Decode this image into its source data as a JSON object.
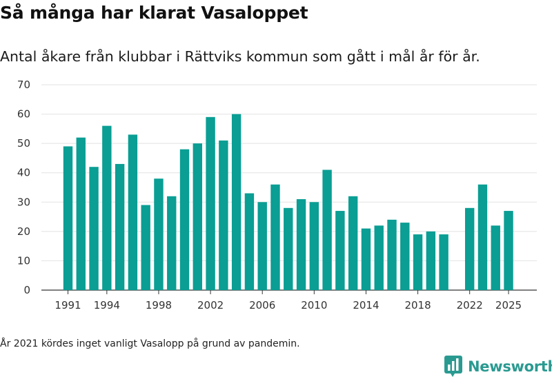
{
  "title": "Så många har klarat Vasaloppet",
  "subtitle": "Antal åkare från klubbar i Rättviks kommun som gått i mål år för år.",
  "note": "År 2021 kördes inget vanligt Vasalopp på grund av pandemin.",
  "brand": {
    "name": "Newsworthy",
    "icon": "newsworthy-logo-icon",
    "color": "#2a9a91"
  },
  "chart_data": {
    "type": "bar",
    "title": "Så många har klarat Vasaloppet",
    "xlabel": "",
    "ylabel": "",
    "bar_color": "#0a9e94",
    "ylim": [
      0,
      70
    ],
    "yticks": [
      0,
      10,
      20,
      30,
      40,
      50,
      60,
      70
    ],
    "xticks": [
      1991,
      1994,
      1998,
      2002,
      2006,
      2010,
      2014,
      2018,
      2022,
      2025
    ],
    "x": [
      1991,
      1992,
      1993,
      1994,
      1995,
      1996,
      1997,
      1998,
      1999,
      2000,
      2001,
      2002,
      2003,
      2004,
      2005,
      2006,
      2007,
      2008,
      2009,
      2010,
      2011,
      2012,
      2013,
      2014,
      2015,
      2016,
      2017,
      2018,
      2019,
      2020,
      2021,
      2022,
      2023,
      2024,
      2025
    ],
    "values": [
      49,
      52,
      42,
      56,
      43,
      53,
      29,
      38,
      32,
      48,
      50,
      59,
      51,
      60,
      33,
      30,
      36,
      28,
      31,
      30,
      41,
      27,
      32,
      21,
      22,
      24,
      23,
      19,
      20,
      19,
      null,
      28,
      36,
      22,
      27
    ]
  }
}
